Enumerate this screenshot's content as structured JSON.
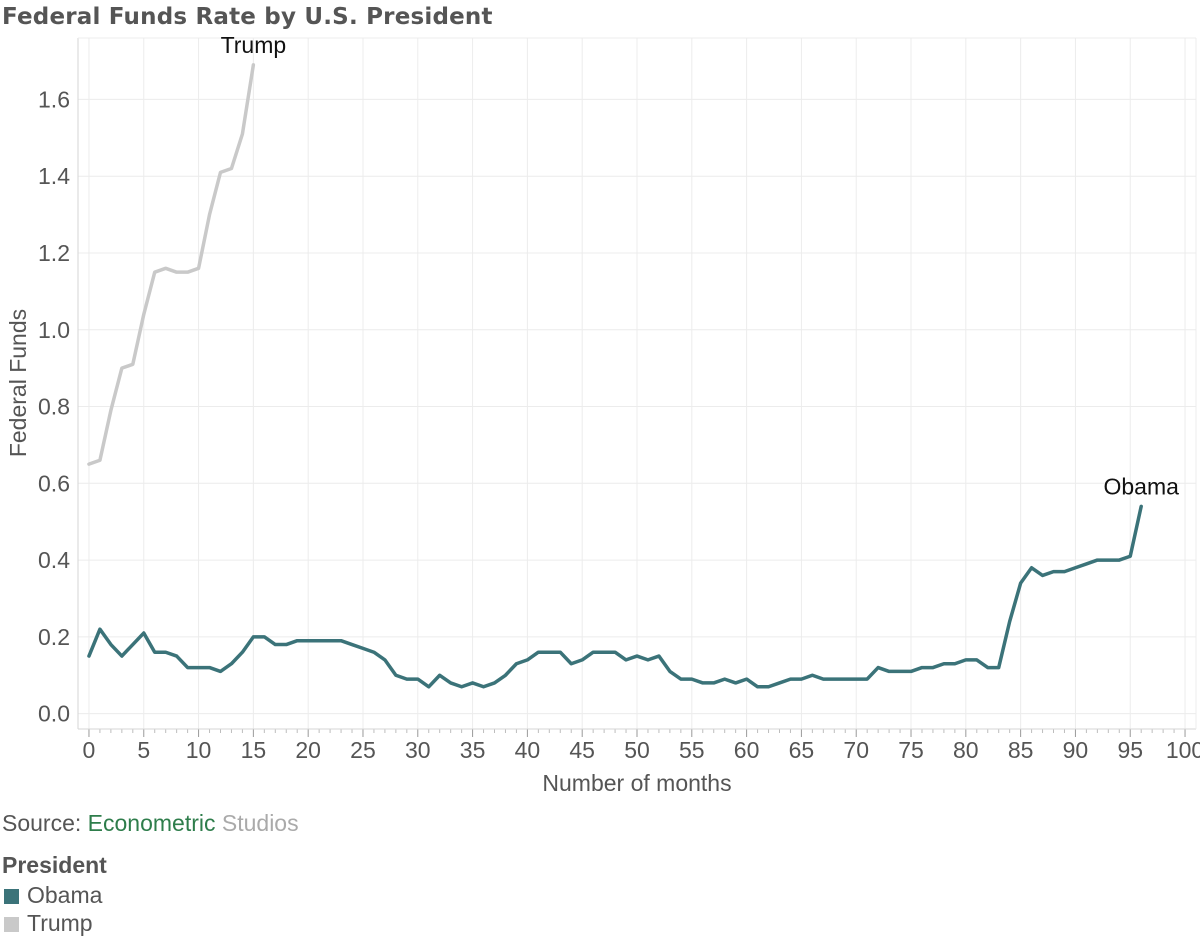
{
  "chart_data": {
    "type": "line",
    "title": "Federal Funds Rate by U.S. President",
    "xlabel": "Number of months",
    "ylabel": "Federal Funds",
    "xlim": [
      -1,
      101
    ],
    "ylim": [
      -0.04,
      1.76
    ],
    "x_ticks": [
      0,
      5,
      10,
      15,
      20,
      25,
      30,
      35,
      40,
      45,
      50,
      55,
      60,
      65,
      70,
      75,
      80,
      85,
      90,
      95,
      100
    ],
    "x_tick_labels": [
      "0",
      "5",
      "10",
      "15",
      "20",
      "25",
      "30",
      "35",
      "40",
      "45",
      "50",
      "55",
      "60",
      "65",
      "70",
      "75",
      "80",
      "85",
      "90",
      "95",
      "100"
    ],
    "y_ticks": [
      0,
      0.2,
      0.4,
      0.6,
      0.8,
      1.0,
      1.2,
      1.4,
      1.6
    ],
    "y_tick_labels": [
      "0.0",
      "0.2",
      "0.4",
      "0.6",
      "0.8",
      "1.0",
      "1.2",
      "1.4",
      "1.6"
    ],
    "grid": true,
    "series": [
      {
        "name": "Obama",
        "color": "#3b7379",
        "label": "Obama",
        "values": [
          0.15,
          0.22,
          0.18,
          0.15,
          0.18,
          0.21,
          0.16,
          0.16,
          0.15,
          0.12,
          0.12,
          0.12,
          0.11,
          0.13,
          0.16,
          0.2,
          0.2,
          0.18,
          0.18,
          0.19,
          0.19,
          0.19,
          0.19,
          0.19,
          0.18,
          0.17,
          0.16,
          0.14,
          0.1,
          0.09,
          0.09,
          0.07,
          0.1,
          0.08,
          0.07,
          0.08,
          0.07,
          0.08,
          0.1,
          0.13,
          0.14,
          0.16,
          0.16,
          0.16,
          0.13,
          0.14,
          0.16,
          0.16,
          0.16,
          0.14,
          0.15,
          0.14,
          0.15,
          0.11,
          0.09,
          0.09,
          0.08,
          0.08,
          0.09,
          0.08,
          0.09,
          0.07,
          0.07,
          0.08,
          0.09,
          0.09,
          0.1,
          0.09,
          0.09,
          0.09,
          0.09,
          0.09,
          0.12,
          0.11,
          0.11,
          0.11,
          0.12,
          0.12,
          0.13,
          0.13,
          0.14,
          0.14,
          0.12,
          0.12,
          0.24,
          0.34,
          0.38,
          0.36,
          0.37,
          0.37,
          0.38,
          0.39,
          0.4,
          0.4,
          0.4,
          0.41,
          0.54
        ]
      },
      {
        "name": "Trump",
        "color": "#c9c9c9",
        "label": "Trump",
        "values": [
          0.65,
          0.66,
          0.79,
          0.9,
          0.91,
          1.04,
          1.15,
          1.16,
          1.15,
          1.15,
          1.16,
          1.3,
          1.41,
          1.42,
          1.51,
          1.69
        ]
      }
    ],
    "legend": {
      "title": "President",
      "entries": [
        "Obama",
        "Trump"
      ],
      "placement": "bottom-left"
    },
    "source": {
      "prefix": "Source: ",
      "highlight": "Econometric",
      "suffix": " Studios",
      "highlight_color": "#2e7d4b",
      "suffix_color": "#aaaaaa"
    }
  }
}
